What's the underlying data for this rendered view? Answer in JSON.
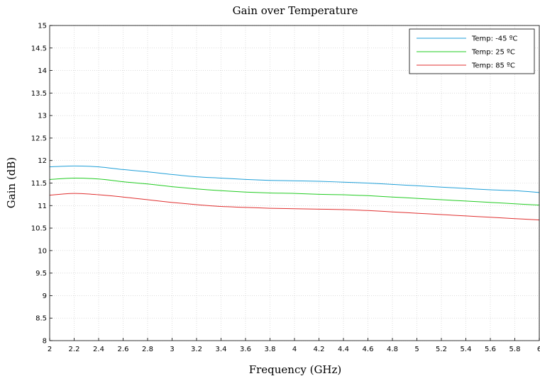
{
  "chart_data": {
    "type": "line",
    "title": "Gain over Temperature",
    "xlabel": "Frequency (GHz)",
    "ylabel": "Gain (dB)",
    "xlim": [
      2,
      6
    ],
    "ylim": [
      8,
      15
    ],
    "grid": true,
    "legend_position": "top-right",
    "x_ticks": [
      "2",
      "2.2",
      "2.4",
      "2.6",
      "2.8",
      "3",
      "3.2",
      "3.4",
      "3.6",
      "3.8",
      "4",
      "4.2",
      "4.4",
      "4.6",
      "4.8",
      "5",
      "5.2",
      "5.4",
      "5.6",
      "5.8",
      "6"
    ],
    "y_ticks": [
      "8",
      "8.5",
      "9",
      "9.5",
      "10",
      "10.5",
      "11",
      "11.5",
      "12",
      "12.5",
      "13",
      "13.5",
      "14",
      "14.5",
      "15"
    ],
    "x": [
      2.0,
      2.2,
      2.4,
      2.6,
      2.8,
      3.0,
      3.2,
      3.4,
      3.6,
      3.8,
      4.0,
      4.2,
      4.4,
      4.6,
      4.8,
      5.0,
      5.2,
      5.4,
      5.6,
      5.8,
      6.0
    ],
    "series": [
      {
        "name": "Temp: -45 ºC",
        "color": "#1f9fd8",
        "values": [
          11.86,
          11.88,
          11.86,
          11.8,
          11.75,
          11.69,
          11.64,
          11.61,
          11.58,
          11.56,
          11.55,
          11.54,
          11.52,
          11.5,
          11.47,
          11.44,
          11.41,
          11.38,
          11.35,
          11.33,
          11.29
        ]
      },
      {
        "name": "Temp: 25 ºC",
        "color": "#22cc22",
        "values": [
          11.58,
          11.61,
          11.59,
          11.53,
          11.48,
          11.42,
          11.37,
          11.33,
          11.3,
          11.28,
          11.27,
          11.25,
          11.24,
          11.22,
          11.19,
          11.16,
          11.13,
          11.1,
          11.07,
          11.04,
          11.01
        ]
      },
      {
        "name": "Temp: 85 ºC",
        "color": "#e03030",
        "values": [
          11.23,
          11.27,
          11.24,
          11.19,
          11.13,
          11.07,
          11.02,
          10.98,
          10.96,
          10.94,
          10.93,
          10.92,
          10.91,
          10.89,
          10.86,
          10.83,
          10.8,
          10.77,
          10.74,
          10.71,
          10.68
        ]
      }
    ]
  }
}
